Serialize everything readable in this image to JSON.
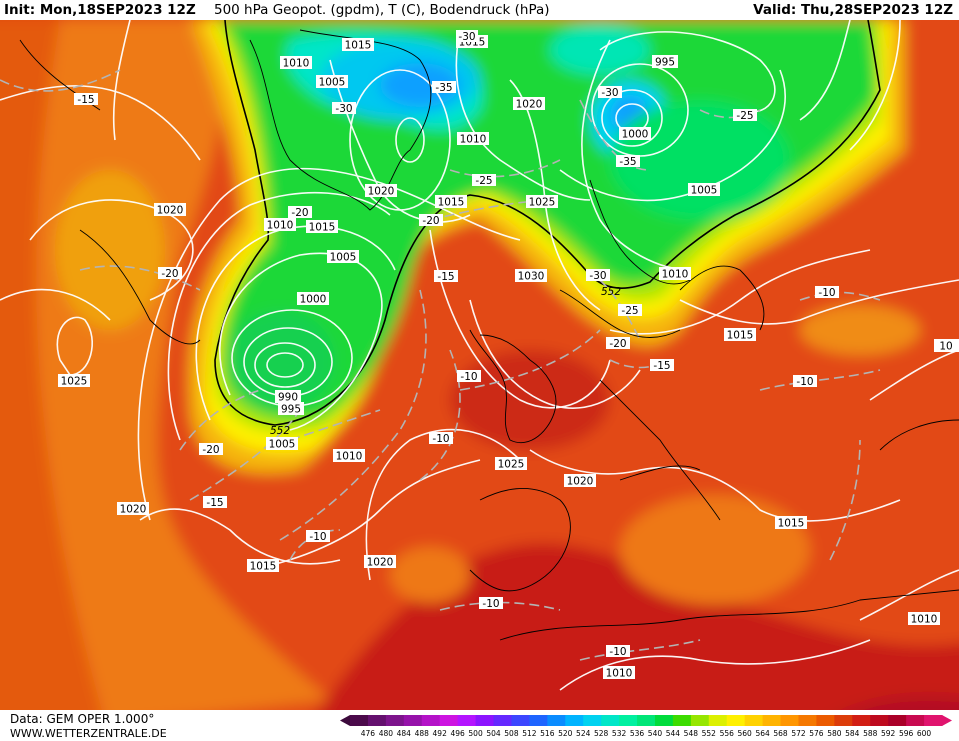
{
  "header": {
    "init": "Init: Mon,18SEP2023 12Z",
    "title": "500 hPa Geopot. (gpdm), T (C), Bodendruck (hPa)",
    "valid": "Valid: Thu,28SEP2023 12Z"
  },
  "footer": {
    "source": "Data: GEM OPER 1.000°",
    "url": "WWW.WETTERZENTRALE.DE"
  },
  "legend": {
    "ticks": [
      "476",
      "480",
      "484",
      "488",
      "492",
      "496",
      "500",
      "504",
      "508",
      "512",
      "516",
      "520",
      "524",
      "528",
      "532",
      "536",
      "540",
      "544",
      "548",
      "552",
      "556",
      "560",
      "564",
      "568",
      "572",
      "576",
      "580",
      "584",
      "588",
      "592",
      "596",
      "600"
    ],
    "colors": [
      "#4b0a4b",
      "#64106e",
      "#7d148c",
      "#9612aa",
      "#b412c8",
      "#cd14e1",
      "#b414ff",
      "#8c14ff",
      "#6428ff",
      "#3c46ff",
      "#1e64ff",
      "#0a8cff",
      "#00b4ff",
      "#00d2f0",
      "#00e6c8",
      "#00f0a0",
      "#00e678",
      "#00dc3c",
      "#3cdc00",
      "#96e600",
      "#dcf000",
      "#fff000",
      "#ffd200",
      "#ffb400",
      "#ff9600",
      "#f57800",
      "#eb5a00",
      "#dc3c0a",
      "#d21e14",
      "#be0a1e",
      "#aa0028",
      "#c80a50",
      "#e0146e"
    ]
  },
  "pressure_labels": [
    "1015",
    "1015",
    "1010",
    "1005",
    "995",
    "1000",
    "1005",
    "1010",
    "1020",
    "1015",
    "1010",
    "1025",
    "1005",
    "1030",
    "1010",
    "1015",
    "1020",
    "1020",
    "1025",
    "1000",
    "990",
    "995",
    "1005",
    "1010",
    "1020",
    "1015",
    "1025",
    "1020",
    "1015",
    "1020",
    "1010",
    "1015",
    "1010",
    "10"
  ],
  "temp_labels": [
    "-30",
    "-15",
    "-30",
    "-30",
    "-35",
    "-35",
    "-25",
    "-25",
    "-20",
    "-20",
    "-20",
    "-15",
    "-30",
    "-25",
    "-20",
    "-15",
    "-10",
    "-10",
    "-10",
    "-10",
    "-20",
    "-15",
    "-10",
    "-10",
    "-10"
  ],
  "height_labels": [
    "552",
    "552"
  ],
  "colors": {
    "contour": "#ffffff",
    "temp_contour": "#aaaaaa",
    "label_box": "#ffffff",
    "thick_line": "#000000"
  }
}
